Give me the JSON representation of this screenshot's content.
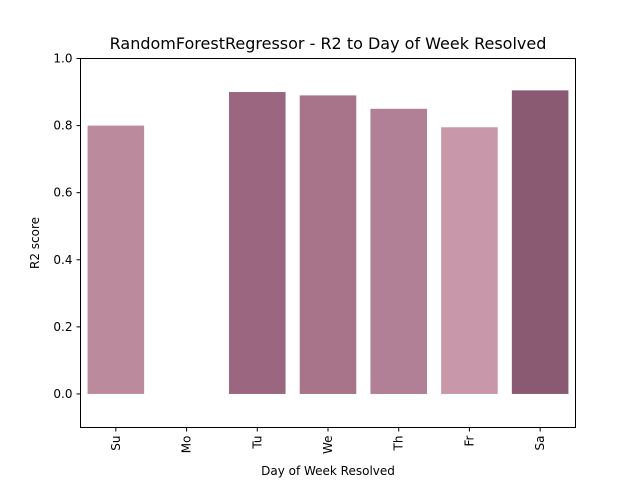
{
  "chart_data": {
    "type": "bar",
    "title": "RandomForestRegressor - R2 to Day of Week Resolved",
    "xlabel": "Day of Week Resolved",
    "ylabel": "R2 score",
    "categories": [
      "Su",
      "Mo",
      "Tu",
      "We",
      "Th",
      "Fr",
      "Sa"
    ],
    "values": [
      0.8,
      null,
      0.9,
      0.89,
      0.85,
      0.795,
      0.905
    ],
    "bar_colors": [
      "#bc8a9d",
      "#ffffff",
      "#9a6680",
      "#a77489",
      "#b17f96",
      "#c898aa",
      "#8a5a72"
    ],
    "ylim": [
      -0.1,
      1.0
    ],
    "yticks": [
      0.0,
      0.2,
      0.4,
      0.6,
      0.8,
      1.0
    ],
    "ytick_labels": [
      "0.0",
      "0.2",
      "0.4",
      "0.6",
      "0.8",
      "1.0"
    ],
    "grid": false,
    "legend": "none"
  }
}
